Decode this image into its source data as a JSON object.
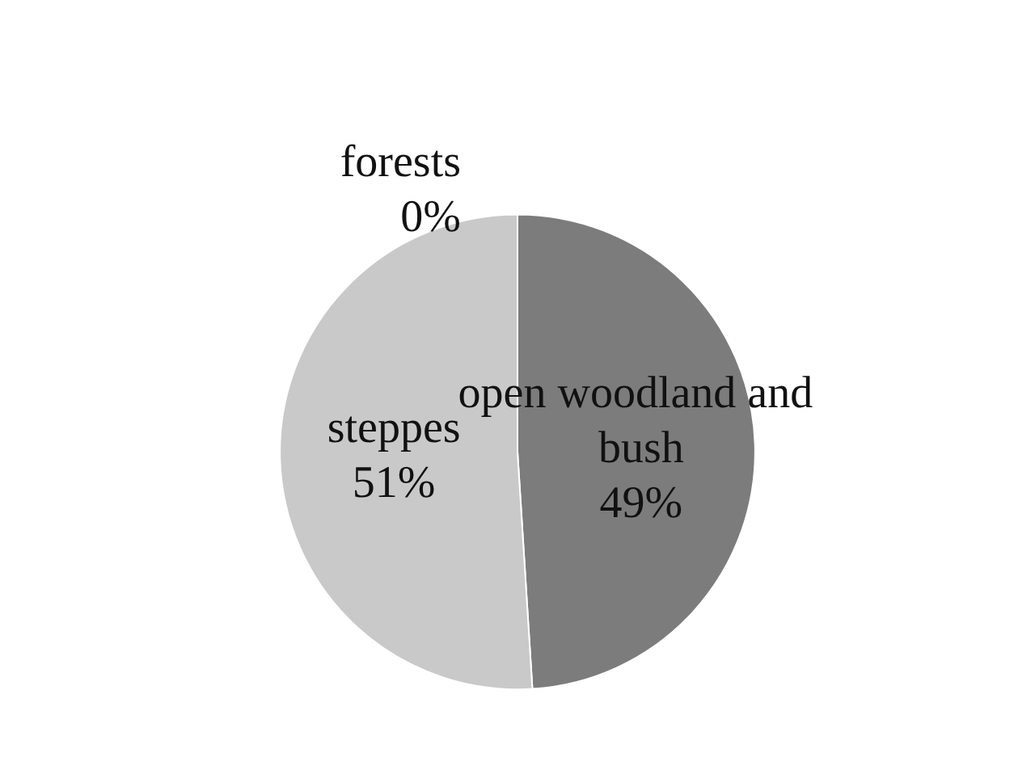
{
  "chart_data": {
    "type": "pie",
    "categories": [
      "forests",
      "open woodland and bush",
      "steppes"
    ],
    "values": [
      0,
      49,
      51
    ],
    "colors": [
      "#a0a0a0",
      "#7c7c7c",
      "#c9c9c9"
    ],
    "value_labels": [
      "0%",
      "49%",
      "51%"
    ]
  }
}
